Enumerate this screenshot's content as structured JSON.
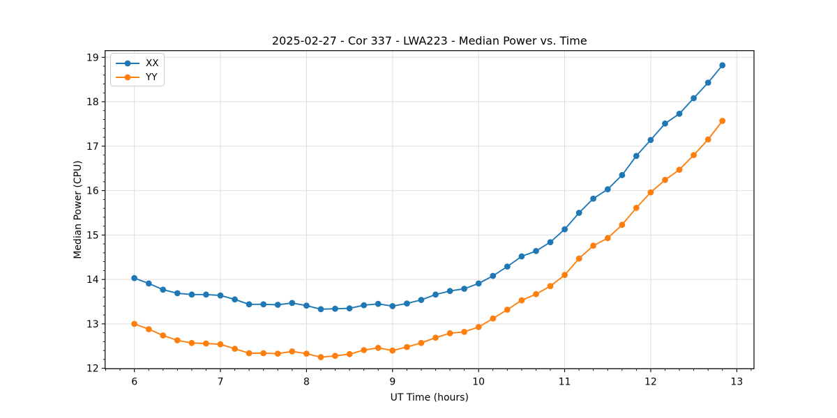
{
  "chart_data": {
    "type": "line",
    "title": "2025-02-27 - Cor 337 - LWA223 - Median Power vs. Time",
    "xlabel": "UT Time (hours)",
    "ylabel": "Median Power (CPU)",
    "x": [
      6.0,
      6.167,
      6.333,
      6.5,
      6.667,
      6.833,
      7.0,
      7.167,
      7.333,
      7.5,
      7.667,
      7.833,
      8.0,
      8.167,
      8.333,
      8.5,
      8.667,
      8.833,
      9.0,
      9.167,
      9.333,
      9.5,
      9.667,
      9.833,
      10.0,
      10.167,
      10.333,
      10.5,
      10.667,
      10.833,
      11.0,
      11.167,
      11.333,
      11.5,
      11.667,
      11.833,
      12.0,
      12.167,
      12.333,
      12.5,
      12.667,
      12.833
    ],
    "series": [
      {
        "name": "XX",
        "color": "#1f77b4",
        "marker": "circle",
        "values": [
          14.03,
          13.91,
          13.77,
          13.69,
          13.66,
          13.66,
          13.64,
          13.55,
          13.44,
          13.44,
          13.43,
          13.47,
          13.41,
          13.33,
          13.34,
          13.35,
          13.42,
          13.45,
          13.4,
          13.46,
          13.54,
          13.66,
          13.74,
          13.79,
          13.91,
          14.08,
          14.29,
          14.52,
          14.64,
          14.84,
          15.13,
          15.5,
          15.82,
          16.03,
          16.35,
          16.78,
          17.14,
          17.51,
          17.73,
          18.08,
          18.43,
          18.82
        ]
      },
      {
        "name": "YY",
        "color": "#ff7f0e",
        "marker": "circle",
        "values": [
          13.0,
          12.88,
          12.74,
          12.63,
          12.57,
          12.56,
          12.54,
          12.44,
          12.34,
          12.34,
          12.33,
          12.38,
          12.33,
          12.25,
          12.28,
          12.32,
          12.41,
          12.46,
          12.4,
          12.48,
          12.57,
          12.69,
          12.79,
          12.82,
          12.93,
          13.12,
          13.32,
          13.53,
          13.67,
          13.85,
          14.1,
          14.47,
          14.76,
          14.93,
          15.23,
          15.61,
          15.96,
          16.24,
          16.47,
          16.8,
          17.15,
          17.57
        ]
      }
    ],
    "xticks": [
      6,
      7,
      8,
      9,
      10,
      11,
      12,
      13
    ],
    "yticks": [
      12,
      13,
      14,
      15,
      16,
      17,
      18,
      19
    ],
    "xlim": [
      5.66,
      13.2
    ],
    "ylim": [
      11.99,
      19.15
    ],
    "grid": true,
    "legend_position": "upper left"
  },
  "colors": {
    "grid": "#dedede",
    "axis": "#000000",
    "background": "#ffffff",
    "legend_border": "#c9c9c9"
  }
}
